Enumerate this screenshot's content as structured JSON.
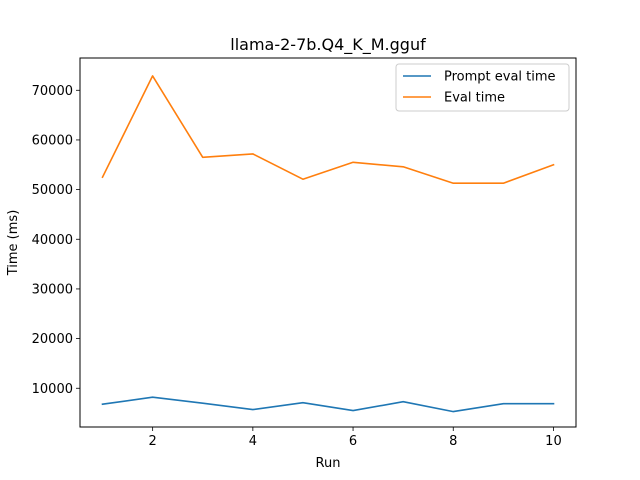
{
  "chart_data": {
    "type": "line",
    "title": "llama-2-7b.Q4_K_M.gguf",
    "xlabel": "Run",
    "ylabel": "Time (ms)",
    "x": [
      1,
      2,
      3,
      4,
      5,
      6,
      7,
      8,
      9,
      10
    ],
    "xticks": [
      2,
      4,
      6,
      8,
      10
    ],
    "yticks": [
      10000,
      20000,
      30000,
      40000,
      50000,
      60000,
      70000
    ],
    "xlim": [
      0.55,
      10.45
    ],
    "ylim": [
      2200,
      76500
    ],
    "legend_position": "upper right",
    "grid": false,
    "series": [
      {
        "name": "Prompt eval time",
        "color": "#1f77b4",
        "values": [
          6800,
          8200,
          7000,
          5700,
          7100,
          5500,
          7300,
          5300,
          6900,
          6900
        ]
      },
      {
        "name": "Eval time",
        "color": "#ff7f0e",
        "values": [
          52500,
          72900,
          56500,
          57200,
          52100,
          55500,
          54600,
          51300,
          51300,
          55000
        ]
      }
    ]
  }
}
